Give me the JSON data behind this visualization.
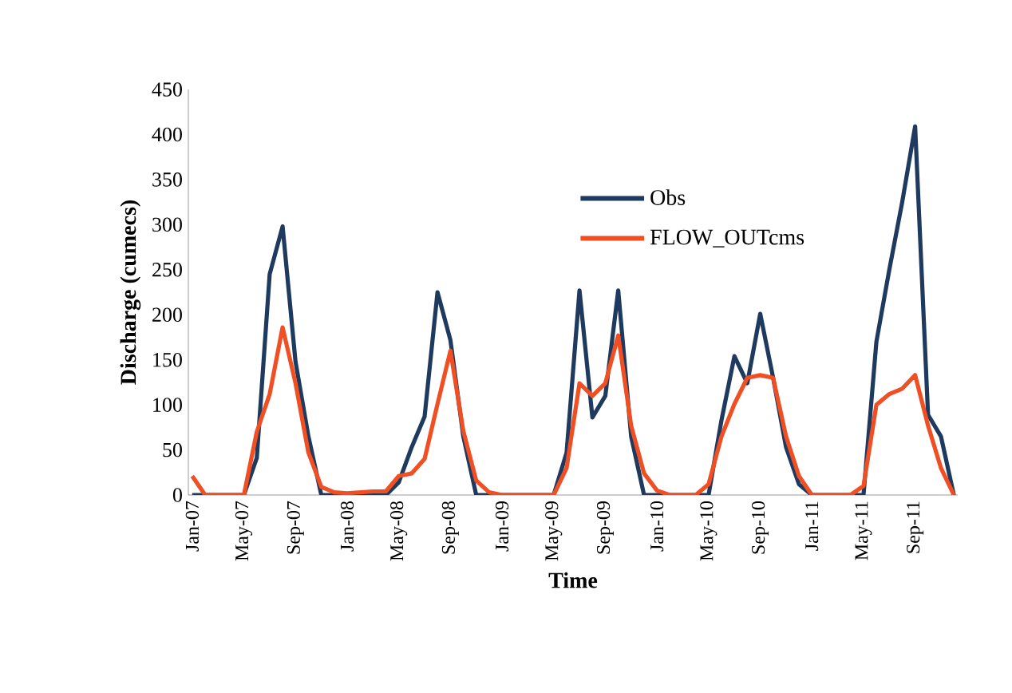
{
  "chart_data": {
    "type": "line",
    "xlabel": "Time",
    "ylabel": "Discharge (cumecs)",
    "categories": [
      "Jan-07",
      null,
      null,
      null,
      "May-07",
      null,
      null,
      null,
      "Sep-07",
      null,
      null,
      null,
      "Jan-08",
      null,
      null,
      null,
      "May-08",
      null,
      null,
      null,
      "Sep-08",
      null,
      null,
      null,
      "Jan-09",
      null,
      null,
      null,
      "May-09",
      null,
      null,
      null,
      "Sep-09",
      null,
      null,
      null,
      "Jan-10",
      null,
      null,
      null,
      "May-10",
      null,
      null,
      null,
      "Sep-10",
      null,
      null,
      null,
      "Jan-11",
      null,
      null,
      null,
      "May-11",
      null,
      null,
      null,
      "Sep-11",
      null,
      null,
      null
    ],
    "series": [
      {
        "name": "Obs",
        "color": "#1f3a5f",
        "values": [
          0,
          0,
          0,
          0,
          0,
          41,
          245,
          298,
          148,
          65,
          0,
          0,
          0,
          0,
          0,
          0,
          14,
          53,
          87,
          225,
          172,
          65,
          0,
          0,
          0,
          0,
          0,
          0,
          0,
          47,
          227,
          86,
          110,
          227,
          65,
          0,
          0,
          0,
          0,
          0,
          0,
          83,
          154,
          124,
          201,
          130,
          53,
          12,
          0,
          0,
          0,
          0,
          0,
          170,
          250,
          325,
          409,
          89,
          65,
          0
        ]
      },
      {
        "name": "FLOW_OUTcms",
        "color": "#f04e23",
        "values": [
          21,
          0,
          0,
          0,
          0,
          70,
          112,
          186,
          124,
          47,
          9,
          3,
          2,
          3,
          4,
          4,
          21,
          24,
          40,
          101,
          160,
          71,
          16,
          3,
          0,
          0,
          0,
          0,
          0,
          30,
          124,
          110,
          124,
          177,
          77,
          24,
          5,
          0,
          0,
          0,
          12,
          65,
          101,
          130,
          133,
          130,
          65,
          21,
          0,
          0,
          0,
          0,
          10,
          100,
          112,
          118,
          133,
          77,
          30,
          0
        ]
      }
    ],
    "ylim": [
      0,
      450
    ],
    "yticks": [
      0,
      50,
      100,
      150,
      200,
      250,
      300,
      350,
      400,
      450
    ],
    "legend": "top",
    "line_style": "solid"
  }
}
